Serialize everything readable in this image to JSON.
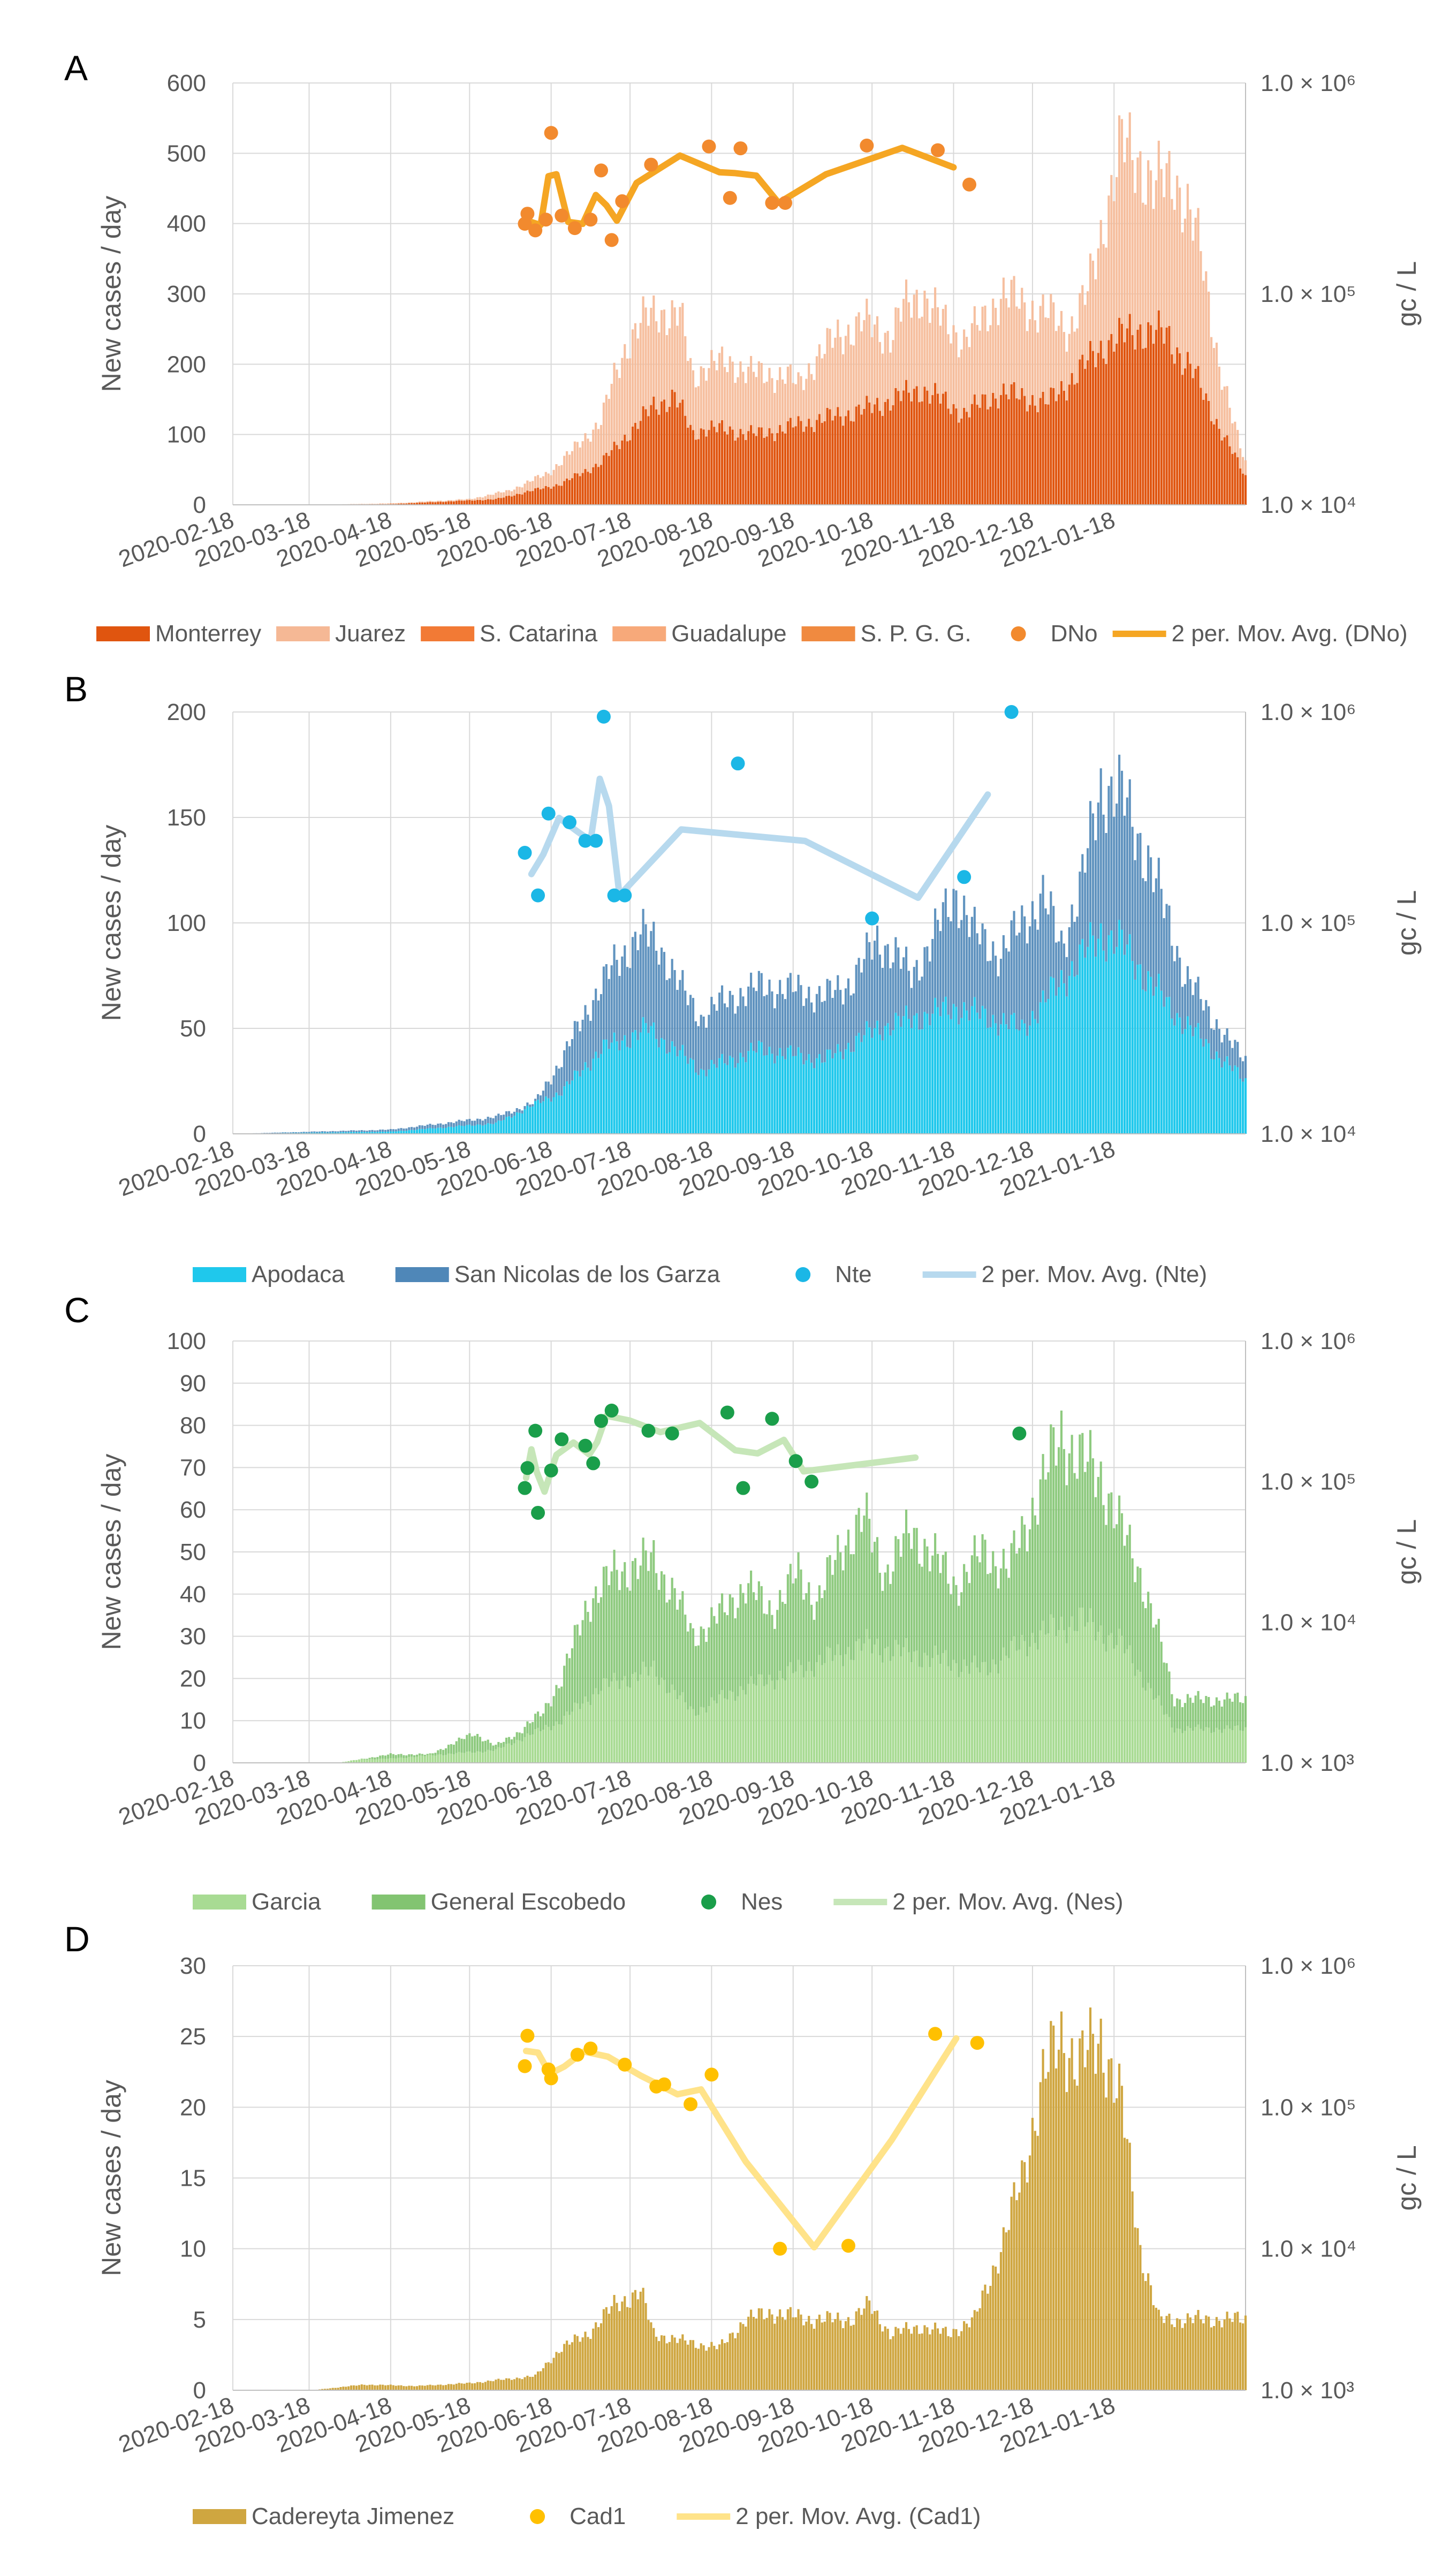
{
  "figure": {
    "date_ticks": [
      "2020-02-18",
      "2020-03-18",
      "2020-04-18",
      "2020-05-18",
      "2020-06-18",
      "2020-07-18",
      "2020-08-18",
      "2020-09-18",
      "2020-10-18",
      "2020-11-18",
      "2020-12-18",
      "2021-01-18"
    ]
  },
  "chart_data": [
    {
      "panel": "A",
      "type": "bar",
      "ylabel": "New cases / day",
      "y2label": "gc / L",
      "ylim": [
        0,
        600
      ],
      "yticks": [
        "0",
        "100",
        "200",
        "300",
        "400",
        "500",
        "600"
      ],
      "y2_ticks": [
        "1.0 × 10⁴",
        "1.0 × 10⁵",
        "1.0 × 10⁶"
      ],
      "y2_range_log10": [
        4,
        6
      ],
      "stack_total_envelope": [
        [
          0,
          0
        ],
        [
          30,
          0
        ],
        [
          60,
          2
        ],
        [
          90,
          8
        ],
        [
          105,
          20
        ],
        [
          120,
          45
        ],
        [
          130,
          80
        ],
        [
          140,
          120
        ],
        [
          145,
          180
        ],
        [
          150,
          230
        ],
        [
          155,
          260
        ],
        [
          162,
          275
        ],
        [
          170,
          270
        ],
        [
          175,
          180
        ],
        [
          180,
          200
        ],
        [
          190,
          200
        ],
        [
          200,
          185
        ],
        [
          210,
          185
        ],
        [
          215,
          170
        ],
        [
          222,
          210
        ],
        [
          230,
          240
        ],
        [
          240,
          260
        ],
        [
          250,
          240
        ],
        [
          255,
          280
        ],
        [
          262,
          300
        ],
        [
          270,
          260
        ],
        [
          278,
          235
        ],
        [
          285,
          260
        ],
        [
          292,
          300
        ],
        [
          300,
          285
        ],
        [
          310,
          270
        ],
        [
          318,
          250
        ],
        [
          325,
          300
        ],
        [
          332,
          420
        ],
        [
          338,
          510
        ],
        [
          345,
          490
        ],
        [
          350,
          450
        ],
        [
          358,
          470
        ],
        [
          363,
          420
        ],
        [
          368,
          360
        ],
        [
          375,
          200
        ],
        [
          380,
          120
        ],
        [
          385,
          60
        ]
      ],
      "monterrey_envelope": [
        [
          0,
          0
        ],
        [
          60,
          1
        ],
        [
          100,
          8
        ],
        [
          125,
          30
        ],
        [
          140,
          60
        ],
        [
          150,
          100
        ],
        [
          160,
          140
        ],
        [
          168,
          155
        ],
        [
          175,
          100
        ],
        [
          180,
          110
        ],
        [
          200,
          100
        ],
        [
          222,
          120
        ],
        [
          240,
          135
        ],
        [
          262,
          165
        ],
        [
          278,
          130
        ],
        [
          292,
          160
        ],
        [
          310,
          145
        ],
        [
          332,
          230
        ],
        [
          345,
          250
        ],
        [
          355,
          240
        ],
        [
          365,
          190
        ],
        [
          375,
          110
        ],
        [
          385,
          40
        ]
      ],
      "series": [
        {
          "name": "Monterrey",
          "color": "#E0550F"
        },
        {
          "name": "Juarez",
          "color": "#F5B895"
        },
        {
          "name": "S. Catarina",
          "color": "#F27A35"
        },
        {
          "name": "Guadalupe",
          "color": "#F7A97A"
        },
        {
          "name": "S. P. G. G.",
          "color": "#F08A40"
        }
      ],
      "points_name": "DNo",
      "points_color": "#F28A2E",
      "points": [
        [
          111,
          215000
        ],
        [
          112,
          240000
        ],
        [
          115,
          200000
        ],
        [
          119,
          225000
        ],
        [
          121,
          580000
        ],
        [
          125,
          235000
        ],
        [
          130,
          205000
        ],
        [
          136,
          225000
        ],
        [
          140,
          385000
        ],
        [
          144,
          180000
        ],
        [
          148,
          275000
        ],
        [
          159,
          410000
        ],
        [
          181,
          500000
        ],
        [
          189,
          285000
        ],
        [
          193,
          490000
        ],
        [
          205,
          270000
        ],
        [
          210,
          270000
        ],
        [
          241,
          505000
        ],
        [
          268,
          480000
        ],
        [
          280,
          330000
        ]
      ],
      "mov_avg_name": "2 per. Mov. Avg. (DNo)",
      "mov_avg_color": "#F5A623"
    },
    {
      "panel": "B",
      "type": "bar",
      "ylabel": "New cases / day",
      "y2label": "gc / L",
      "ylim": [
        0,
        200
      ],
      "yticks": [
        "0",
        "50",
        "100",
        "150",
        "200"
      ],
      "y2_ticks": [
        "1.0 × 10⁴",
        "1.0 × 10⁵",
        "1.0 × 10⁶"
      ],
      "y2_range_log10": [
        4,
        6
      ],
      "stack_total_envelope": [
        [
          0,
          0
        ],
        [
          30,
          1
        ],
        [
          60,
          2
        ],
        [
          80,
          5
        ],
        [
          100,
          8
        ],
        [
          115,
          15
        ],
        [
          125,
          35
        ],
        [
          135,
          60
        ],
        [
          145,
          80
        ],
        [
          155,
          95
        ],
        [
          162,
          90
        ],
        [
          170,
          70
        ],
        [
          178,
          55
        ],
        [
          185,
          62
        ],
        [
          200,
          70
        ],
        [
          215,
          68
        ],
        [
          225,
          65
        ],
        [
          235,
          72
        ],
        [
          245,
          92
        ],
        [
          252,
          85
        ],
        [
          258,
          75
        ],
        [
          265,
          90
        ],
        [
          275,
          115
        ],
        [
          282,
          95
        ],
        [
          292,
          85
        ],
        [
          300,
          100
        ],
        [
          308,
          112
        ],
        [
          315,
          90
        ],
        [
          322,
          115
        ],
        [
          330,
          165
        ],
        [
          338,
          160
        ],
        [
          348,
          130
        ],
        [
          356,
          100
        ],
        [
          362,
          75
        ],
        [
          370,
          60
        ],
        [
          378,
          45
        ],
        [
          385,
          35
        ]
      ],
      "apodaca_envelope": [
        [
          0,
          0
        ],
        [
          60,
          1
        ],
        [
          100,
          5
        ],
        [
          125,
          20
        ],
        [
          140,
          40
        ],
        [
          158,
          50
        ],
        [
          178,
          30
        ],
        [
          200,
          40
        ],
        [
          225,
          35
        ],
        [
          245,
          50
        ],
        [
          275,
          60
        ],
        [
          300,
          50
        ],
        [
          330,
          95
        ],
        [
          338,
          90
        ],
        [
          356,
          60
        ],
        [
          372,
          40
        ],
        [
          385,
          25
        ]
      ],
      "series": [
        {
          "name": "Apodaca",
          "color": "#1FC8EC"
        },
        {
          "name": "San Nicolas de los Garza",
          "color": "#4F87B8"
        }
      ],
      "points_name": "Nte",
      "points_color": "#1BB7E6",
      "points": [
        [
          111,
          215000
        ],
        [
          116,
          135000
        ],
        [
          120,
          330000
        ],
        [
          128,
          300000
        ],
        [
          134,
          245000
        ],
        [
          138,
          245000
        ],
        [
          141,
          950000
        ],
        [
          145,
          135000
        ],
        [
          149,
          135000
        ],
        [
          192,
          570000
        ],
        [
          243,
          105000
        ],
        [
          278,
          165000
        ],
        [
          296,
          1000000
        ]
      ],
      "mov_avg_name": "2 per. Mov. Avg. (Nte)",
      "mov_avg_color": "#B7D9EE"
    },
    {
      "panel": "C",
      "type": "bar",
      "ylabel": "New cases / day",
      "y2label": "gc / L",
      "ylim": [
        0,
        100
      ],
      "yticks": [
        "0",
        "10",
        "20",
        "30",
        "40",
        "50",
        "60",
        "70",
        "80",
        "90",
        "100"
      ],
      "y2_ticks": [
        "1.0 × 10³",
        "1.0 × 10⁴",
        "1.0 × 10⁵",
        "1.0 × 10⁶"
      ],
      "y2_range_log10": [
        3,
        6
      ],
      "stack_total_envelope": [
        [
          0,
          0
        ],
        [
          40,
          0
        ],
        [
          60,
          2
        ],
        [
          75,
          2
        ],
        [
          85,
          5
        ],
        [
          92,
          7
        ],
        [
          100,
          4
        ],
        [
          108,
          7
        ],
        [
          118,
          12
        ],
        [
          125,
          20
        ],
        [
          135,
          38
        ],
        [
          145,
          45
        ],
        [
          160,
          48
        ],
        [
          168,
          40
        ],
        [
          175,
          30
        ],
        [
          185,
          35
        ],
        [
          195,
          42
        ],
        [
          205,
          36
        ],
        [
          215,
          45
        ],
        [
          222,
          38
        ],
        [
          232,
          52
        ],
        [
          240,
          58
        ],
        [
          248,
          45
        ],
        [
          258,
          55
        ],
        [
          265,
          50
        ],
        [
          275,
          42
        ],
        [
          285,
          50
        ],
        [
          295,
          46
        ],
        [
          305,
          62
        ],
        [
          315,
          78
        ],
        [
          322,
          72
        ],
        [
          330,
          68
        ],
        [
          338,
          55
        ],
        [
          345,
          45
        ],
        [
          352,
          30
        ],
        [
          358,
          15
        ]
      ],
      "garcia_envelope": [
        [
          0,
          0
        ],
        [
          60,
          1
        ],
        [
          100,
          3
        ],
        [
          125,
          10
        ],
        [
          140,
          18
        ],
        [
          160,
          22
        ],
        [
          175,
          12
        ],
        [
          195,
          18
        ],
        [
          215,
          22
        ],
        [
          240,
          28
        ],
        [
          265,
          25
        ],
        [
          285,
          22
        ],
        [
          305,
          30
        ],
        [
          322,
          34
        ],
        [
          338,
          28
        ],
        [
          358,
          8
        ]
      ],
      "series": [
        {
          "name": "Garcia",
          "color": "#A8DB93"
        },
        {
          "name": "General Escobedo",
          "color": "#82C471"
        }
      ],
      "points_name": "Nes",
      "points_color": "#1A9E4A",
      "points": [
        [
          111,
          90000
        ],
        [
          112,
          125000
        ],
        [
          115,
          230000
        ],
        [
          116,
          60000
        ],
        [
          121,
          120000
        ],
        [
          125,
          200000
        ],
        [
          134,
          180000
        ],
        [
          137,
          135000
        ],
        [
          140,
          270000
        ],
        [
          144,
          320000
        ],
        [
          158,
          230000
        ],
        [
          167,
          220000
        ],
        [
          188,
          310000
        ],
        [
          194,
          90000
        ],
        [
          205,
          280000
        ],
        [
          214,
          140000
        ],
        [
          220,
          100000
        ],
        [
          299,
          220000
        ]
      ],
      "mov_avg_name": "2 per. Mov. Avg. (Nes)",
      "mov_avg_color": "#C6E6B8"
    },
    {
      "panel": "D",
      "type": "bar",
      "ylabel": "New cases / day",
      "y2label": "gc / L",
      "ylim": [
        0,
        30
      ],
      "yticks": [
        "0",
        "5",
        "10",
        "15",
        "20",
        "25",
        "30"
      ],
      "y2_ticks": [
        "1.0 × 10³",
        "1.0 × 10⁴",
        "1.0 × 10⁵",
        "1.0 × 10⁶"
      ],
      "y2_range_log10": [
        3,
        6
      ],
      "stack_total_envelope": [
        [
          0,
          0
        ],
        [
          30,
          0
        ],
        [
          50,
          0.4
        ],
        [
          70,
          0.3
        ],
        [
          90,
          0.5
        ],
        [
          105,
          0.8
        ],
        [
          115,
          1
        ],
        [
          125,
          3
        ],
        [
          135,
          4
        ],
        [
          145,
          6
        ],
        [
          155,
          7
        ],
        [
          160,
          4
        ],
        [
          170,
          3.5
        ],
        [
          185,
          3
        ],
        [
          195,
          5
        ],
        [
          205,
          5.5
        ],
        [
          220,
          5
        ],
        [
          235,
          5
        ],
        [
          242,
          6
        ],
        [
          250,
          4
        ],
        [
          262,
          4.5
        ],
        [
          272,
          4
        ],
        [
          282,
          5
        ],
        [
          292,
          10
        ],
        [
          300,
          15
        ],
        [
          308,
          22
        ],
        [
          315,
          25
        ],
        [
          322,
          23
        ],
        [
          330,
          25
        ],
        [
          338,
          20
        ],
        [
          345,
          10
        ],
        [
          352,
          5
        ]
      ],
      "series": [
        {
          "name": "Cadereyta Jimenez",
          "color": "#CFA640"
        }
      ],
      "points_name": "Cad1",
      "points_color": "#FFC000",
      "points": [
        [
          111,
          195000
        ],
        [
          112,
          320000
        ],
        [
          120,
          185000
        ],
        [
          121,
          160000
        ],
        [
          131,
          235000
        ],
        [
          136,
          260000
        ],
        [
          149,
          200000
        ],
        [
          161,
          140000
        ],
        [
          164,
          145000
        ],
        [
          174,
          105000
        ],
        [
          182,
          170000
        ],
        [
          208,
          10000
        ],
        [
          234,
          10500
        ],
        [
          267,
          330000
        ],
        [
          283,
          285000
        ]
      ],
      "mov_avg_name": "2 per. Mov. Avg. (Cad1)",
      "mov_avg_color": "#FFE38A"
    }
  ]
}
